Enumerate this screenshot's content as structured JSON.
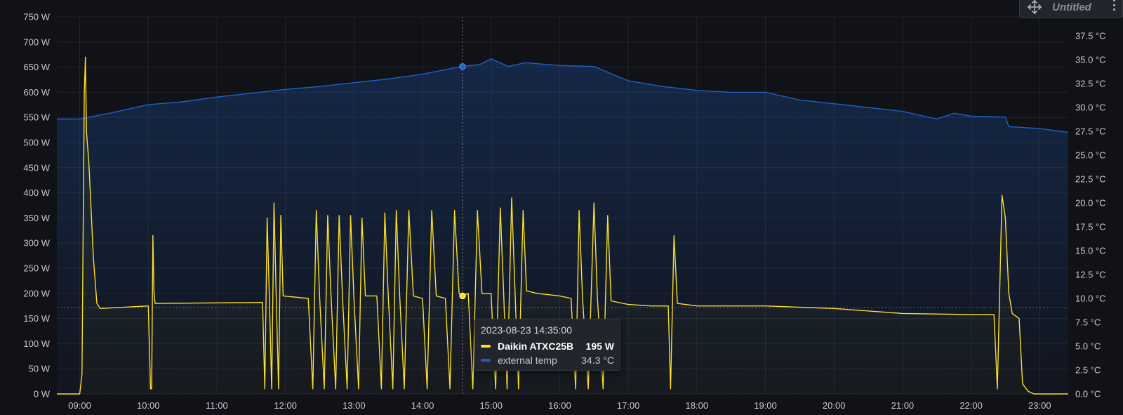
{
  "panel": {
    "title": "Untitled"
  },
  "tooltip": {
    "time": "2023-08-23 14:35:00",
    "rows": [
      {
        "name": "Daikin ATXC25B",
        "value": "195 W",
        "color": "#fade2a"
      },
      {
        "name": "external temp",
        "value": "34.3 °C",
        "color": "#1f60c4"
      }
    ]
  },
  "chart_data": {
    "type": "line",
    "x_range": [
      "08:40",
      "23:25"
    ],
    "x_ticks": [
      "09:00",
      "10:00",
      "11:00",
      "12:00",
      "13:00",
      "14:00",
      "15:00",
      "16:00",
      "17:00",
      "18:00",
      "19:00",
      "20:00",
      "21:00",
      "22:00",
      "23:00"
    ],
    "y_left": {
      "unit": "W",
      "range": [
        0,
        750
      ],
      "ticks": [
        "0 W",
        "50 W",
        "100 W",
        "150 W",
        "200 W",
        "250 W",
        "300 W",
        "350 W",
        "400 W",
        "450 W",
        "500 W",
        "550 W",
        "600 W",
        "650 W",
        "700 W",
        "750 W"
      ]
    },
    "y_right": {
      "unit": "°C",
      "range": [
        0,
        39.5
      ],
      "ticks": [
        "0.0 °C",
        "2.5 °C",
        "5.0 °C",
        "7.5 °C",
        "10.0 °C",
        "12.5 °C",
        "15.0 °C",
        "17.5 °C",
        "20.0 °C",
        "22.5 °C",
        "25.0 °C",
        "27.5 °C",
        "30.0 °C",
        "32.5 °C",
        "35.0 °C",
        "37.5 °C"
      ]
    },
    "crosshair": {
      "time": "14:35",
      "power": 195,
      "temp": 34.3
    },
    "threshold": 172,
    "series": [
      {
        "name": "Daikin ATXC25B",
        "axis": "left",
        "color": "#fade2a",
        "points": [
          [
            "08:40",
            0
          ],
          [
            "09:00",
            0
          ],
          [
            "09:02",
            40
          ],
          [
            "09:04",
            600
          ],
          [
            "09:05",
            670
          ],
          [
            "09:06",
            520
          ],
          [
            "09:08",
            460
          ],
          [
            "09:12",
            270
          ],
          [
            "09:15",
            180
          ],
          [
            "09:18",
            170
          ],
          [
            "10:00",
            175
          ],
          [
            "10:02",
            10
          ],
          [
            "10:03",
            10
          ],
          [
            "10:04",
            315
          ],
          [
            "10:05",
            200
          ],
          [
            "10:06",
            180
          ],
          [
            "11:40",
            182
          ],
          [
            "11:42",
            10
          ],
          [
            "11:44",
            350
          ],
          [
            "11:46",
            185
          ],
          [
            "11:48",
            10
          ],
          [
            "11:50",
            380
          ],
          [
            "11:52",
            190
          ],
          [
            "11:54",
            10
          ],
          [
            "11:56",
            355
          ],
          [
            "11:58",
            195
          ],
          [
            "12:20",
            190
          ],
          [
            "12:24",
            10
          ],
          [
            "12:27",
            365
          ],
          [
            "12:30",
            190
          ],
          [
            "12:34",
            10
          ],
          [
            "12:37",
            355
          ],
          [
            "12:40",
            190
          ],
          [
            "12:44",
            10
          ],
          [
            "12:47",
            355
          ],
          [
            "12:50",
            190
          ],
          [
            "12:54",
            10
          ],
          [
            "12:57",
            355
          ],
          [
            "13:00",
            190
          ],
          [
            "13:04",
            10
          ],
          [
            "13:07",
            350
          ],
          [
            "13:10",
            195
          ],
          [
            "13:20",
            195
          ],
          [
            "13:24",
            10
          ],
          [
            "13:27",
            360
          ],
          [
            "13:30",
            195
          ],
          [
            "13:34",
            10
          ],
          [
            "13:37",
            365
          ],
          [
            "13:40",
            195
          ],
          [
            "13:44",
            10
          ],
          [
            "13:48",
            365
          ],
          [
            "13:52",
            195
          ],
          [
            "14:00",
            190
          ],
          [
            "14:04",
            10
          ],
          [
            "14:08",
            365
          ],
          [
            "14:12",
            195
          ],
          [
            "14:20",
            190
          ],
          [
            "14:24",
            10
          ],
          [
            "14:28",
            365
          ],
          [
            "14:32",
            200
          ],
          [
            "14:35",
            195
          ],
          [
            "14:40",
            200
          ],
          [
            "14:44",
            10
          ],
          [
            "14:48",
            365
          ],
          [
            "14:52",
            200
          ],
          [
            "15:00",
            200
          ],
          [
            "15:04",
            10
          ],
          [
            "15:08",
            370
          ],
          [
            "15:11",
            200
          ],
          [
            "15:14",
            10
          ],
          [
            "15:18",
            390
          ],
          [
            "15:21",
            200
          ],
          [
            "15:24",
            10
          ],
          [
            "15:28",
            365
          ],
          [
            "15:31",
            205
          ],
          [
            "15:40",
            200
          ],
          [
            "16:00",
            195
          ],
          [
            "16:10",
            190
          ],
          [
            "16:14",
            10
          ],
          [
            "16:17",
            365
          ],
          [
            "16:20",
            190
          ],
          [
            "16:25",
            10
          ],
          [
            "16:30",
            380
          ],
          [
            "16:33",
            190
          ],
          [
            "16:38",
            10
          ],
          [
            "16:42",
            355
          ],
          [
            "16:45",
            185
          ],
          [
            "17:00",
            178
          ],
          [
            "17:20",
            175
          ],
          [
            "17:35",
            175
          ],
          [
            "17:37",
            10
          ],
          [
            "17:40",
            315
          ],
          [
            "17:43",
            180
          ],
          [
            "18:00",
            175
          ],
          [
            "19:00",
            175
          ],
          [
            "20:00",
            170
          ],
          [
            "21:00",
            160
          ],
          [
            "22:00",
            158
          ],
          [
            "22:20",
            158
          ],
          [
            "22:23",
            10
          ],
          [
            "22:27",
            395
          ],
          [
            "22:30",
            350
          ],
          [
            "22:33",
            200
          ],
          [
            "22:36",
            160
          ],
          [
            "22:42",
            150
          ],
          [
            "22:45",
            20
          ],
          [
            "22:50",
            5
          ],
          [
            "22:55",
            0
          ],
          [
            "23:25",
            0
          ]
        ]
      },
      {
        "name": "external temp",
        "axis": "right",
        "color": "#1f60c4",
        "points": [
          [
            "08:40",
            28.8
          ],
          [
            "09:00",
            28.8
          ],
          [
            "09:30",
            29.5
          ],
          [
            "10:00",
            30.3
          ],
          [
            "10:30",
            30.6
          ],
          [
            "11:00",
            31.1
          ],
          [
            "11:30",
            31.5
          ],
          [
            "12:00",
            31.9
          ],
          [
            "12:30",
            32.2
          ],
          [
            "13:00",
            32.6
          ],
          [
            "13:30",
            33.0
          ],
          [
            "14:00",
            33.5
          ],
          [
            "14:30",
            34.2
          ],
          [
            "14:35",
            34.3
          ],
          [
            "14:50",
            34.5
          ],
          [
            "15:00",
            35.1
          ],
          [
            "15:15",
            34.3
          ],
          [
            "15:30",
            34.7
          ],
          [
            "16:00",
            34.4
          ],
          [
            "16:30",
            34.3
          ],
          [
            "17:00",
            32.8
          ],
          [
            "17:30",
            32.2
          ],
          [
            "18:00",
            31.8
          ],
          [
            "18:30",
            31.6
          ],
          [
            "19:00",
            31.6
          ],
          [
            "19:30",
            30.8
          ],
          [
            "20:00",
            30.4
          ],
          [
            "20:30",
            30.0
          ],
          [
            "21:00",
            29.6
          ],
          [
            "21:30",
            28.8
          ],
          [
            "21:45",
            29.4
          ],
          [
            "22:00",
            29.1
          ],
          [
            "22:30",
            29.0
          ],
          [
            "22:33",
            28.0
          ],
          [
            "23:00",
            27.8
          ],
          [
            "23:25",
            27.4
          ]
        ]
      }
    ]
  }
}
